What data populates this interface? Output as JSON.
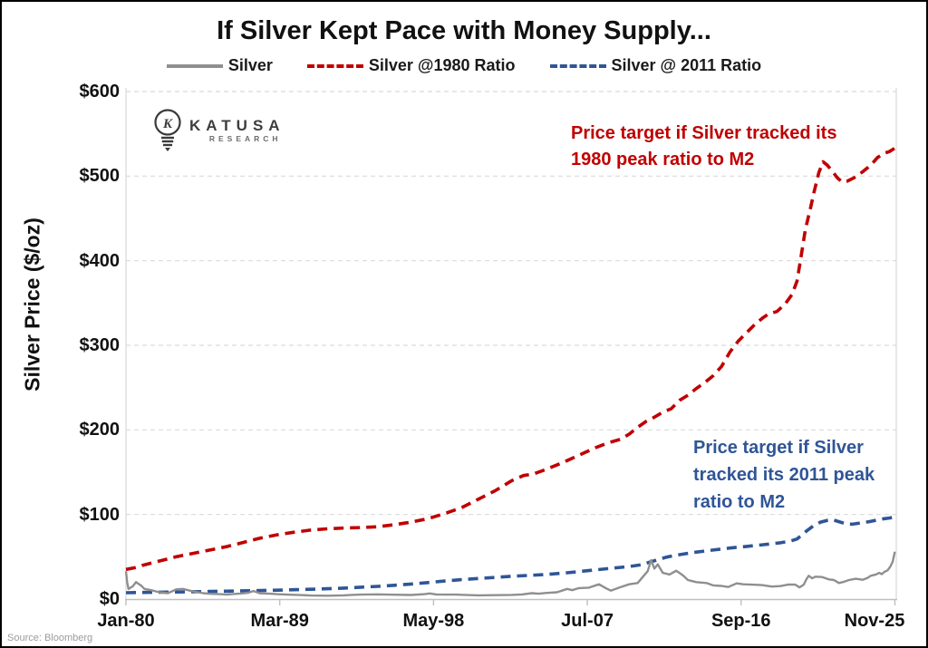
{
  "figure": {
    "source": "Source: Bloomberg",
    "logo": {
      "name": "KATUSA",
      "sub": "RESEARCH",
      "icon": "lightbulb-k-icon"
    },
    "annotations": {
      "red": {
        "color": "#C00000",
        "lines": [
          "Price target if Silver tracked its",
          "1980 peak ratio to M2"
        ]
      },
      "blue": {
        "color": "#2F5597",
        "lines": [
          "Price target if Silver",
          "tracked its 2011 peak",
          "ratio to M2"
        ]
      }
    }
  },
  "chart_data": {
    "type": "line",
    "title": "If Silver Kept Pace with Money Supply...",
    "ylabel": "Silver Price ($/oz)",
    "xlabel": "",
    "ylim": [
      0,
      600
    ],
    "x_range": [
      1980.0,
      2025.917
    ],
    "grid": "horizontal-dashed",
    "grid_color": "#D9D9D9",
    "axis_color": "#BFBFBF",
    "legend_position": "top",
    "y_ticks": [
      {
        "value": 0,
        "label": "$0"
      },
      {
        "value": 100,
        "label": "$100"
      },
      {
        "value": 200,
        "label": "$200"
      },
      {
        "value": 300,
        "label": "$300"
      },
      {
        "value": 400,
        "label": "$400"
      },
      {
        "value": 500,
        "label": "$500"
      },
      {
        "value": 600,
        "label": "$600"
      }
    ],
    "x_ticks": [
      {
        "year": 1980.0,
        "label": "Jan-80"
      },
      {
        "year": 1989.167,
        "label": "Mar-89"
      },
      {
        "year": 1998.333,
        "label": "May-98"
      },
      {
        "year": 2007.5,
        "label": "Jul-07"
      },
      {
        "year": 2016.667,
        "label": "Sep-16"
      },
      {
        "year": 2025.833,
        "label": "Nov-25"
      }
    ],
    "series": [
      {
        "name": "Silver",
        "color": "#8F8F8F",
        "style": "solid",
        "width": 2.4,
        "points": [
          [
            1980,
            33
          ],
          [
            1980.07,
            20
          ],
          [
            1980.15,
            12
          ],
          [
            1980.4,
            15
          ],
          [
            1980.6,
            20
          ],
          [
            1980.75,
            18
          ],
          [
            1980.9,
            16
          ],
          [
            1981.1,
            12
          ],
          [
            1981.5,
            10.5
          ],
          [
            1982,
            8
          ],
          [
            1982.5,
            7
          ],
          [
            1983,
            11.5
          ],
          [
            1983.4,
            12
          ],
          [
            1984,
            9
          ],
          [
            1984.6,
            7
          ],
          [
            1985,
            6.2
          ],
          [
            1985.6,
            5.8
          ],
          [
            1986,
            5.4
          ],
          [
            1986.8,
            6.5
          ],
          [
            1987.3,
            7.5
          ],
          [
            1987.6,
            9.5
          ],
          [
            1988,
            6.8
          ],
          [
            1988.6,
            6.3
          ],
          [
            1989,
            5.8
          ],
          [
            1989.6,
            5.3
          ],
          [
            1990,
            5
          ],
          [
            1990.6,
            4.6
          ],
          [
            1991,
            4.2
          ],
          [
            1992,
            4
          ],
          [
            1993,
            4.4
          ],
          [
            1993.6,
            5
          ],
          [
            1994,
            5.3
          ],
          [
            1995,
            5.6
          ],
          [
            1995.6,
            5.3
          ],
          [
            1996,
            5.1
          ],
          [
            1997,
            4.8
          ],
          [
            1997.8,
            5.8
          ],
          [
            1998.1,
            6.6
          ],
          [
            1998.5,
            5.5
          ],
          [
            1999,
            5.3
          ],
          [
            1999.7,
            5.2
          ],
          [
            2000,
            5
          ],
          [
            2001,
            4.4
          ],
          [
            2002,
            4.6
          ],
          [
            2003,
            4.9
          ],
          [
            2003.6,
            5.5
          ],
          [
            2004.2,
            7
          ],
          [
            2004.6,
            6.3
          ],
          [
            2005,
            7.2
          ],
          [
            2005.7,
            8
          ],
          [
            2006.3,
            12
          ],
          [
            2006.6,
            10.5
          ],
          [
            2007,
            13
          ],
          [
            2007.6,
            13.5
          ],
          [
            2008.2,
            17.5
          ],
          [
            2008.6,
            13
          ],
          [
            2008.9,
            10
          ],
          [
            2009.4,
            13.5
          ],
          [
            2010,
            17.5
          ],
          [
            2010.5,
            19
          ],
          [
            2010.8,
            26
          ],
          [
            2011.1,
            33
          ],
          [
            2011.3,
            46
          ],
          [
            2011.5,
            36
          ],
          [
            2011.7,
            41
          ],
          [
            2012,
            31
          ],
          [
            2012.4,
            29
          ],
          [
            2012.8,
            33.5
          ],
          [
            2013.2,
            28
          ],
          [
            2013.5,
            22.5
          ],
          [
            2014,
            20
          ],
          [
            2014.6,
            19
          ],
          [
            2015,
            16.2
          ],
          [
            2015.5,
            15.5
          ],
          [
            2015.9,
            14.2
          ],
          [
            2016.4,
            18.5
          ],
          [
            2016.8,
            17.5
          ],
          [
            2017.3,
            17
          ],
          [
            2017.9,
            16.5
          ],
          [
            2018.5,
            14.8
          ],
          [
            2019,
            15.3
          ],
          [
            2019.5,
            17.3
          ],
          [
            2019.9,
            17
          ],
          [
            2020.15,
            13.8
          ],
          [
            2020.4,
            17
          ],
          [
            2020.55,
            23
          ],
          [
            2020.7,
            27.5
          ],
          [
            2020.9,
            24.5
          ],
          [
            2021.1,
            26.5
          ],
          [
            2021.5,
            26
          ],
          [
            2021.9,
            23.3
          ],
          [
            2022.2,
            22.5
          ],
          [
            2022.5,
            19
          ],
          [
            2022.8,
            20.5
          ],
          [
            2023.1,
            22.5
          ],
          [
            2023.5,
            24
          ],
          [
            2023.9,
            22.8
          ],
          [
            2024.2,
            25
          ],
          [
            2024.4,
            27.5
          ],
          [
            2024.7,
            29
          ],
          [
            2024.9,
            31
          ],
          [
            2025.05,
            29.5
          ],
          [
            2025.2,
            32
          ],
          [
            2025.4,
            34
          ],
          [
            2025.55,
            38
          ],
          [
            2025.7,
            44
          ],
          [
            2025.83,
            56
          ]
        ]
      },
      {
        "name": "Silver @1980 Ratio",
        "color": "#C00000",
        "style": "dashed",
        "width": 3.6,
        "points": [
          [
            1980,
            35
          ],
          [
            1980.5,
            37
          ],
          [
            1981,
            40
          ],
          [
            1982,
            45
          ],
          [
            1983,
            50
          ],
          [
            1984,
            54
          ],
          [
            1985,
            58
          ],
          [
            1986,
            62
          ],
          [
            1987,
            67
          ],
          [
            1988,
            72
          ],
          [
            1989,
            76
          ],
          [
            1990,
            79
          ],
          [
            1991,
            81.5
          ],
          [
            1992,
            83
          ],
          [
            1993,
            84
          ],
          [
            1994,
            84.5
          ],
          [
            1995,
            85.5
          ],
          [
            1996,
            88
          ],
          [
            1997,
            91
          ],
          [
            1998,
            95
          ],
          [
            1999,
            101
          ],
          [
            2000,
            108
          ],
          [
            2001,
            118
          ],
          [
            2002,
            128
          ],
          [
            2003,
            140
          ],
          [
            2003.7,
            146
          ],
          [
            2004.3,
            148
          ],
          [
            2005,
            153
          ],
          [
            2006,
            161
          ],
          [
            2007,
            170
          ],
          [
            2008,
            179
          ],
          [
            2008.8,
            185
          ],
          [
            2009.5,
            189
          ],
          [
            2010,
            195
          ],
          [
            2010.5,
            203
          ],
          [
            2011,
            210
          ],
          [
            2011.5,
            215
          ],
          [
            2012,
            221
          ],
          [
            2012.5,
            225
          ],
          [
            2013,
            235
          ],
          [
            2013.5,
            241
          ],
          [
            2014,
            249
          ],
          [
            2014.5,
            256
          ],
          [
            2015,
            264
          ],
          [
            2015.5,
            275
          ],
          [
            2016,
            292
          ],
          [
            2016.5,
            305
          ],
          [
            2017,
            315
          ],
          [
            2017.5,
            325
          ],
          [
            2018,
            333
          ],
          [
            2018.3,
            337
          ],
          [
            2018.8,
            340
          ],
          [
            2019.3,
            349
          ],
          [
            2019.7,
            360
          ],
          [
            2020,
            376
          ],
          [
            2020.2,
            400
          ],
          [
            2020.5,
            437
          ],
          [
            2020.8,
            462
          ],
          [
            2021,
            480
          ],
          [
            2021.3,
            504
          ],
          [
            2021.55,
            517
          ],
          [
            2021.8,
            513
          ],
          [
            2022.1,
            506
          ],
          [
            2022.4,
            498
          ],
          [
            2022.7,
            493
          ],
          [
            2023,
            494
          ],
          [
            2023.4,
            498
          ],
          [
            2023.9,
            505
          ],
          [
            2024.4,
            513
          ],
          [
            2024.8,
            522
          ],
          [
            2025.2,
            527
          ],
          [
            2025.5,
            529
          ],
          [
            2025.83,
            533
          ]
        ]
      },
      {
        "name": "Silver @ 2011 Ratio",
        "color": "#2F5597",
        "style": "dashed",
        "width": 3.6,
        "points": [
          [
            1980,
            7.5
          ],
          [
            1981,
            7.8
          ],
          [
            1982,
            8.1
          ],
          [
            1983,
            8.4
          ],
          [
            1984,
            8.7
          ],
          [
            1985,
            9
          ],
          [
            1986,
            9.3
          ],
          [
            1987,
            9.7
          ],
          [
            1988,
            10.1
          ],
          [
            1989,
            10.5
          ],
          [
            1990,
            11
          ],
          [
            1991,
            11.6
          ],
          [
            1992,
            12.2
          ],
          [
            1993,
            13
          ],
          [
            1994,
            14
          ],
          [
            1995,
            15
          ],
          [
            1996,
            16.3
          ],
          [
            1997,
            17.8
          ],
          [
            1998,
            19.5
          ],
          [
            1999,
            21.3
          ],
          [
            2000,
            23
          ],
          [
            2001,
            24.3
          ],
          [
            2002,
            25.6
          ],
          [
            2003,
            27
          ],
          [
            2004,
            28
          ],
          [
            2005,
            29
          ],
          [
            2006,
            30.5
          ],
          [
            2007,
            32.5
          ],
          [
            2008,
            34.5
          ],
          [
            2009,
            36.5
          ],
          [
            2010,
            38.5
          ],
          [
            2010.7,
            40.5
          ],
          [
            2011.2,
            43.5
          ],
          [
            2011.7,
            46.5
          ],
          [
            2012.2,
            49.5
          ],
          [
            2012.7,
            51.5
          ],
          [
            2013.3,
            53.5
          ],
          [
            2014,
            55.5
          ],
          [
            2015,
            58
          ],
          [
            2016,
            60.3
          ],
          [
            2017,
            62.3
          ],
          [
            2018,
            64.3
          ],
          [
            2019,
            66.5
          ],
          [
            2019.6,
            68.5
          ],
          [
            2020,
            71
          ],
          [
            2020.3,
            76
          ],
          [
            2020.6,
            81
          ],
          [
            2021,
            87
          ],
          [
            2021.4,
            91
          ],
          [
            2021.8,
            93
          ],
          [
            2022.1,
            94
          ],
          [
            2022.5,
            91.5
          ],
          [
            2022.9,
            89
          ],
          [
            2023.3,
            88.5
          ],
          [
            2023.8,
            90
          ],
          [
            2024.3,
            91.5
          ],
          [
            2024.8,
            93.5
          ],
          [
            2025.2,
            95
          ],
          [
            2025.5,
            95.8
          ],
          [
            2025.83,
            97
          ]
        ]
      }
    ]
  }
}
